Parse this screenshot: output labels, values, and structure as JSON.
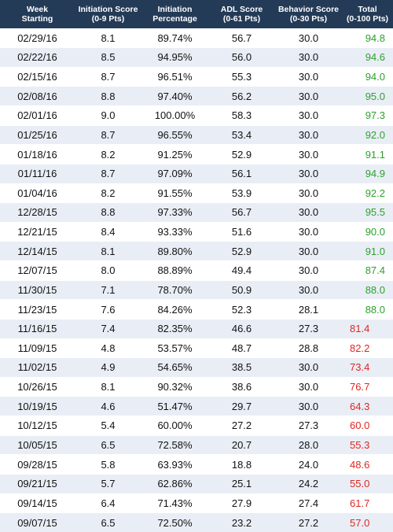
{
  "colors": {
    "header_bg": "#243b57",
    "stripe_bg": "#e9eef6",
    "total_high": "#2da12b",
    "total_low": "#e0261f"
  },
  "headers": [
    {
      "line1": "Week",
      "line2": "Starting"
    },
    {
      "line1": "Initiation Score",
      "line2": "(0-9 Pts)"
    },
    {
      "line1": "Initiation",
      "line2": "Percentage"
    },
    {
      "line1": "ADL Score",
      "line2": "(0-61 Pts)"
    },
    {
      "line1": "Behavior Score",
      "line2": "(0-30 Pts)"
    },
    {
      "line1": "Total",
      "line2": "(0-100 Pts)"
    }
  ],
  "rows": [
    {
      "week": "02/29/16",
      "initiation_score": "8.1",
      "initiation_pct": "89.74%",
      "adl": "56.7",
      "behavior": "30.0",
      "total": "94.8",
      "status": "high"
    },
    {
      "week": "02/22/16",
      "initiation_score": "8.5",
      "initiation_pct": "94.95%",
      "adl": "56.0",
      "behavior": "30.0",
      "total": "94.6",
      "status": "high"
    },
    {
      "week": "02/15/16",
      "initiation_score": "8.7",
      "initiation_pct": "96.51%",
      "adl": "55.3",
      "behavior": "30.0",
      "total": "94.0",
      "status": "high"
    },
    {
      "week": "02/08/16",
      "initiation_score": "8.8",
      "initiation_pct": "97.40%",
      "adl": "56.2",
      "behavior": "30.0",
      "total": "95.0",
      "status": "high"
    },
    {
      "week": "02/01/16",
      "initiation_score": "9.0",
      "initiation_pct": "100.00%",
      "adl": "58.3",
      "behavior": "30.0",
      "total": "97.3",
      "status": "high"
    },
    {
      "week": "01/25/16",
      "initiation_score": "8.7",
      "initiation_pct": "96.55%",
      "adl": "53.4",
      "behavior": "30.0",
      "total": "92.0",
      "status": "high"
    },
    {
      "week": "01/18/16",
      "initiation_score": "8.2",
      "initiation_pct": "91.25%",
      "adl": "52.9",
      "behavior": "30.0",
      "total": "91.1",
      "status": "high"
    },
    {
      "week": "01/11/16",
      "initiation_score": "8.7",
      "initiation_pct": "97.09%",
      "adl": "56.1",
      "behavior": "30.0",
      "total": "94.9",
      "status": "high"
    },
    {
      "week": "01/04/16",
      "initiation_score": "8.2",
      "initiation_pct": "91.55%",
      "adl": "53.9",
      "behavior": "30.0",
      "total": "92.2",
      "status": "high"
    },
    {
      "week": "12/28/15",
      "initiation_score": "8.8",
      "initiation_pct": "97.33%",
      "adl": "56.7",
      "behavior": "30.0",
      "total": "95.5",
      "status": "high"
    },
    {
      "week": "12/21/15",
      "initiation_score": "8.4",
      "initiation_pct": "93.33%",
      "adl": "51.6",
      "behavior": "30.0",
      "total": "90.0",
      "status": "high"
    },
    {
      "week": "12/14/15",
      "initiation_score": "8.1",
      "initiation_pct": "89.80%",
      "adl": "52.9",
      "behavior": "30.0",
      "total": "91.0",
      "status": "high"
    },
    {
      "week": "12/07/15",
      "initiation_score": "8.0",
      "initiation_pct": "88.89%",
      "adl": "49.4",
      "behavior": "30.0",
      "total": "87.4",
      "status": "high"
    },
    {
      "week": "11/30/15",
      "initiation_score": "7.1",
      "initiation_pct": "78.70%",
      "adl": "50.9",
      "behavior": "30.0",
      "total": "88.0",
      "status": "high"
    },
    {
      "week": "11/23/15",
      "initiation_score": "7.6",
      "initiation_pct": "84.26%",
      "adl": "52.3",
      "behavior": "28.1",
      "total": "88.0",
      "status": "high"
    },
    {
      "week": "11/16/15",
      "initiation_score": "7.4",
      "initiation_pct": "82.35%",
      "adl": "46.6",
      "behavior": "27.3",
      "total": "81.4",
      "status": "low"
    },
    {
      "week": "11/09/15",
      "initiation_score": "4.8",
      "initiation_pct": "53.57%",
      "adl": "48.7",
      "behavior": "28.8",
      "total": "82.2",
      "status": "low"
    },
    {
      "week": "11/02/15",
      "initiation_score": "4.9",
      "initiation_pct": "54.65%",
      "adl": "38.5",
      "behavior": "30.0",
      "total": "73.4",
      "status": "low"
    },
    {
      "week": "10/26/15",
      "initiation_score": "8.1",
      "initiation_pct": "90.32%",
      "adl": "38.6",
      "behavior": "30.0",
      "total": "76.7",
      "status": "low"
    },
    {
      "week": "10/19/15",
      "initiation_score": "4.6",
      "initiation_pct": "51.47%",
      "adl": "29.7",
      "behavior": "30.0",
      "total": "64.3",
      "status": "low"
    },
    {
      "week": "10/12/15",
      "initiation_score": "5.4",
      "initiation_pct": "60.00%",
      "adl": "27.2",
      "behavior": "27.3",
      "total": "60.0",
      "status": "low"
    },
    {
      "week": "10/05/15",
      "initiation_score": "6.5",
      "initiation_pct": "72.58%",
      "adl": "20.7",
      "behavior": "28.0",
      "total": "55.3",
      "status": "low"
    },
    {
      "week": "09/28/15",
      "initiation_score": "5.8",
      "initiation_pct": "63.93%",
      "adl": "18.8",
      "behavior": "24.0",
      "total": "48.6",
      "status": "low"
    },
    {
      "week": "09/21/15",
      "initiation_score": "5.7",
      "initiation_pct": "62.86%",
      "adl": "25.1",
      "behavior": "24.2",
      "total": "55.0",
      "status": "low"
    },
    {
      "week": "09/14/15",
      "initiation_score": "6.4",
      "initiation_pct": "71.43%",
      "adl": "27.9",
      "behavior": "27.4",
      "total": "61.7",
      "status": "low"
    },
    {
      "week": "09/07/15",
      "initiation_score": "6.5",
      "initiation_pct": "72.50%",
      "adl": "23.2",
      "behavior": "27.2",
      "total": "57.0",
      "status": "low"
    }
  ]
}
